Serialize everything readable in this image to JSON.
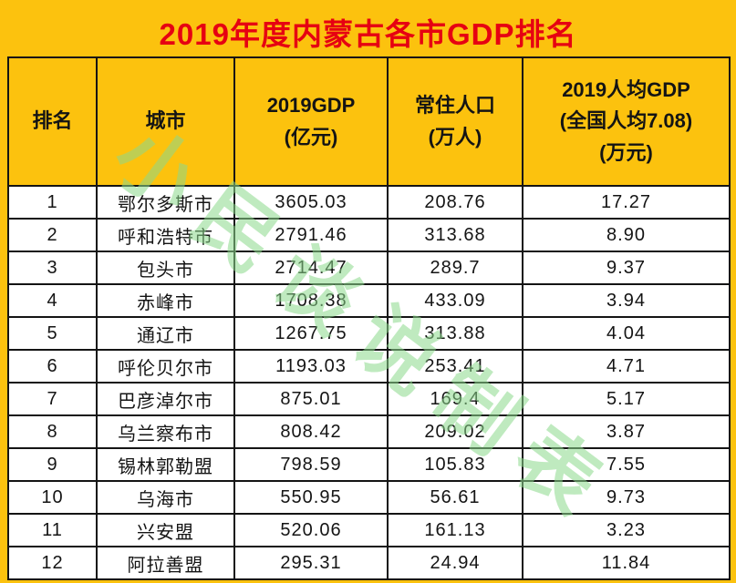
{
  "title": "2019年度内蒙古各市GDP排名",
  "watermark": "小民谈说制表",
  "colors": {
    "background_yellow": "#fcc20e",
    "title_red": "#e60012",
    "border_black": "#141414",
    "watermark_green": "#8cd98c"
  },
  "chart_data": {
    "type": "table",
    "title": "2019年度内蒙古各市GDP排名",
    "columns": [
      {
        "id": "rank",
        "lines": [
          "排名"
        ]
      },
      {
        "id": "city",
        "lines": [
          "城市"
        ]
      },
      {
        "id": "gdp",
        "lines": [
          "2019GDP",
          "(亿元)"
        ]
      },
      {
        "id": "population",
        "lines": [
          "常住人口",
          "(万人)"
        ]
      },
      {
        "id": "gdp-per-capita",
        "lines": [
          "2019人均GDP",
          "(全国人均7.08)",
          "(万元)"
        ]
      }
    ],
    "rows": [
      [
        "1",
        "鄂尔多斯市",
        "3605.03",
        "208.76",
        "17.27"
      ],
      [
        "2",
        "呼和浩特市",
        "2791.46",
        "313.68",
        "8.90"
      ],
      [
        "3",
        "包头市",
        "2714.47",
        "289.7",
        "9.37"
      ],
      [
        "4",
        "赤峰市",
        "1708.38",
        "433.09",
        "3.94"
      ],
      [
        "5",
        "通辽市",
        "1267.75",
        "313.88",
        "4.04"
      ],
      [
        "6",
        "呼伦贝尔市",
        "1193.03",
        "253.41",
        "4.71"
      ],
      [
        "7",
        "巴彦淖尔市",
        "875.01",
        "169.4",
        "5.17"
      ],
      [
        "8",
        "乌兰察布市",
        "808.42",
        "209.02",
        "3.87"
      ],
      [
        "9",
        "锡林郭勒盟",
        "798.59",
        "105.83",
        "7.55"
      ],
      [
        "10",
        "乌海市",
        "550.95",
        "56.61",
        "9.73"
      ],
      [
        "11",
        "兴安盟",
        "520.06",
        "161.13",
        "3.23"
      ],
      [
        "12",
        "阿拉善盟",
        "295.31",
        "24.94",
        "11.84"
      ]
    ]
  }
}
